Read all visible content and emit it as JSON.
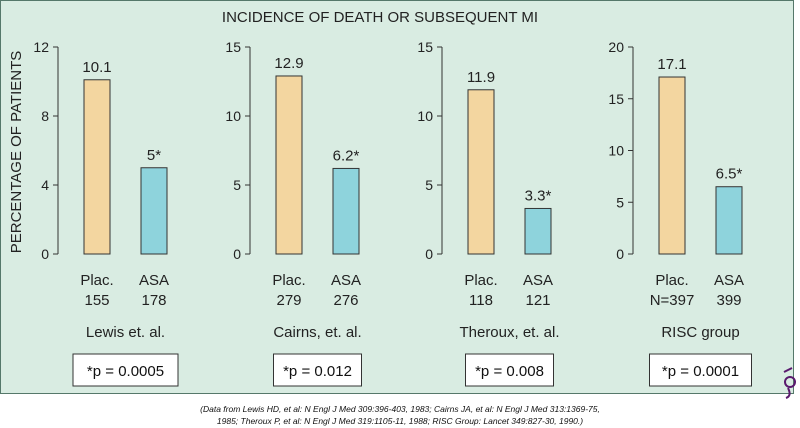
{
  "chart_data": {
    "type": "bar",
    "title": "INCIDENCE OF DEATH OR SUBSEQUENT MI",
    "ylabel": "PERCENTAGE OF PATIENTS",
    "colors": {
      "placebo": "#f3d6a0",
      "asa": "#8ed3dc",
      "panel": "#d9ece2",
      "border": "#55786a",
      "seal": "#5a1a6e"
    },
    "panels": [
      {
        "study": "Lewis et. al.",
        "pvalue": "*p = 0.0005",
        "ylim": [
          0,
          12
        ],
        "yticks": [
          "0",
          "4",
          "8",
          "12"
        ],
        "categories": [
          "Plac.",
          "ASA"
        ],
        "n": [
          "155",
          "178"
        ],
        "values": [
          10.1,
          5
        ],
        "labels": [
          "10.1",
          "5*"
        ]
      },
      {
        "study": "Cairns, et. al.",
        "pvalue": "*p = 0.012",
        "ylim": [
          0,
          15
        ],
        "yticks": [
          "0",
          "5",
          "10",
          "15"
        ],
        "categories": [
          "Plac.",
          "ASA"
        ],
        "n": [
          "279",
          "276"
        ],
        "values": [
          12.9,
          6.2
        ],
        "labels": [
          "12.9",
          "6.2*"
        ]
      },
      {
        "study": "Theroux, et. al.",
        "pvalue": "*p = 0.008",
        "ylim": [
          0,
          15
        ],
        "yticks": [
          "0",
          "5",
          "10",
          "15"
        ],
        "categories": [
          "Plac.",
          "ASA"
        ],
        "n": [
          "118",
          "121"
        ],
        "values": [
          11.9,
          3.3
        ],
        "labels": [
          "11.9",
          "3.3*"
        ]
      },
      {
        "study": "RISC group",
        "pvalue": "*p = 0.0001",
        "ylim": [
          0,
          20
        ],
        "yticks": [
          "0",
          "5",
          "10",
          "15",
          "20"
        ],
        "categories": [
          "Plac.",
          "ASA"
        ],
        "n": [
          "N=397",
          "399"
        ],
        "values": [
          17.1,
          6.5
        ],
        "labels": [
          "17.1",
          "6.5*"
        ]
      }
    ]
  },
  "citation": [
    "(Data from Lewis HD, et al: N Engl J Med 309:396-403, 1983; Cairns JA, et al: N Engl J Med 313:1369-75,",
    "1985; Theroux P, et al: N Engl J Med 319:1105-11, 1988; RISC Group: Lancet 349:827-30, 1990.)"
  ]
}
